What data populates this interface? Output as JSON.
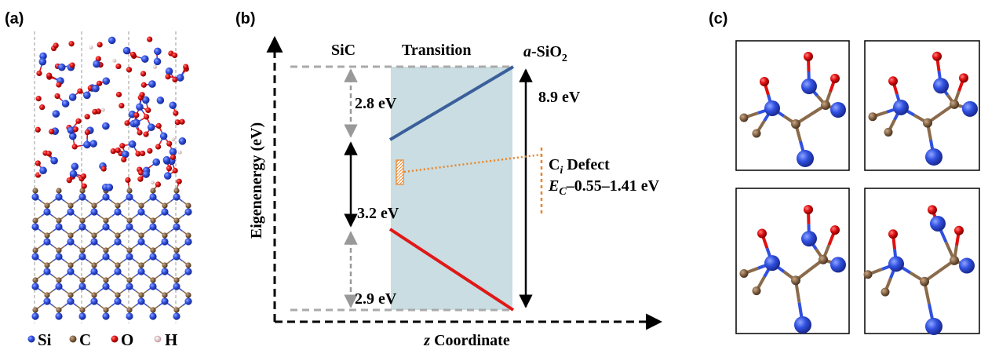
{
  "panels": {
    "a": "(a)",
    "b": "(b)",
    "c": "(c)"
  },
  "legend": [
    "Si",
    "C",
    "O",
    "H"
  ],
  "band_diagram": {
    "regions": [
      "SiC",
      "Transition"
    ],
    "sio2": [
      "a",
      "-SiO",
      "2"
    ],
    "gaps": [
      "2.8 eV",
      "3.2 eV",
      "2.9 eV",
      "8.9 eV"
    ],
    "defect": {
      "name": [
        "C",
        "i",
        " Defect"
      ],
      "level": [
        "E",
        "C",
        "–0.55–1.41 eV"
      ]
    },
    "y_label": "Eigenenergy (eV)",
    "x_label": [
      "z",
      " Coordinate"
    ]
  }
}
